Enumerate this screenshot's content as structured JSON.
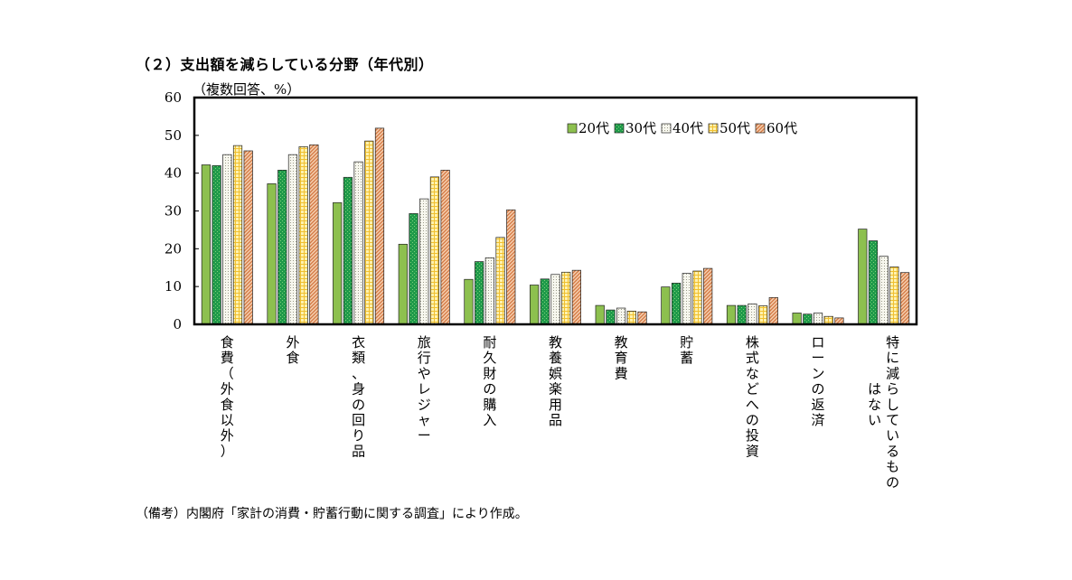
{
  "heading": "（２）支出額を減らしている分野（年代別）",
  "unit_label": "（複数回答、%）",
  "note": "（備考）内閣府「家計の消費・貯蓄行動に関する調査」により作成。",
  "colors": {
    "20代": "#8dc04f",
    "30代": "#1f9a4a",
    "40代": "#ededdf",
    "50代": "#ffe275",
    "60代": "#e7a475"
  },
  "chart_data": {
    "type": "bar",
    "title": "（２）支出額を減らしている分野（年代別）",
    "ylabel": "（複数回答、%）",
    "ylim": [
      0,
      60
    ],
    "yticks": [
      0,
      10,
      20,
      30,
      40,
      50,
      60
    ],
    "legend_position": "top-right",
    "categories": [
      "食費（外食以外）",
      "外食",
      "衣類、身の回り品",
      "旅行やレジャー",
      "耐久財の購入",
      "教養娯楽用品",
      "教育費",
      "貯蓄",
      "株式などへの投資",
      "ローンの返済",
      "特に減らしているものはない"
    ],
    "category_lines": [
      [
        "食費（外食以外）"
      ],
      [
        "外食"
      ],
      [
        "衣類、身の回り品"
      ],
      [
        "旅行やレジャー"
      ],
      [
        "耐久財の購入"
      ],
      [
        "教養娯楽用品"
      ],
      [
        "教育費"
      ],
      [
        "貯蓄"
      ],
      [
        "株式などへの投資"
      ],
      [
        "ローンの返済"
      ],
      [
        "特に減らしているもの",
        "はない"
      ]
    ],
    "series": [
      {
        "name": "20代",
        "values": [
          42.2,
          37.2,
          32.2,
          21.2,
          11.9,
          10.4,
          5.0,
          9.9,
          5.0,
          3.0,
          25.2
        ]
      },
      {
        "name": "30代",
        "values": [
          42.0,
          40.8,
          38.9,
          29.3,
          16.6,
          12.0,
          3.8,
          10.9,
          5.0,
          2.7,
          22.1
        ]
      },
      {
        "name": "40代",
        "values": [
          44.9,
          44.9,
          43.0,
          33.2,
          17.6,
          13.2,
          4.3,
          13.5,
          5.4,
          3.0,
          18.0
        ]
      },
      {
        "name": "50代",
        "values": [
          47.3,
          47.0,
          48.5,
          39.0,
          23.0,
          13.8,
          3.5,
          14.1,
          4.9,
          2.1,
          15.2
        ]
      },
      {
        "name": "60代",
        "values": [
          45.9,
          47.5,
          51.9,
          40.8,
          30.3,
          14.3,
          3.3,
          14.8,
          7.1,
          1.7,
          13.7
        ]
      }
    ]
  }
}
